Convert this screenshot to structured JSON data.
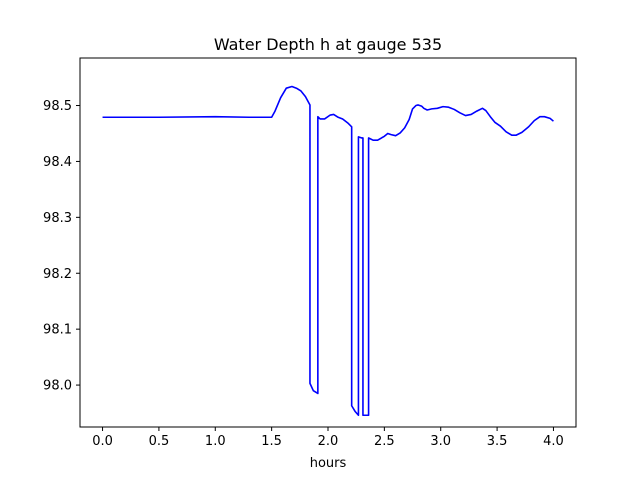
{
  "chart_data": {
    "type": "line",
    "title": "Water Depth h at gauge 535",
    "xlabel": "hours",
    "ylabel": "",
    "xlim": [
      -0.2,
      4.2
    ],
    "ylim": [
      97.925,
      98.585
    ],
    "x_ticks": [
      0.0,
      0.5,
      1.0,
      1.5,
      2.0,
      2.5,
      3.0,
      3.5,
      4.0
    ],
    "x_tick_labels": [
      "0.0",
      "0.5",
      "1.0",
      "1.5",
      "2.0",
      "2.5",
      "3.0",
      "3.5",
      "4.0"
    ],
    "y_ticks": [
      98.0,
      98.1,
      98.2,
      98.3,
      98.4,
      98.5
    ],
    "y_tick_labels": [
      "98.0",
      "98.1",
      "98.2",
      "98.3",
      "98.4",
      "98.5"
    ],
    "grid": false,
    "legend": "none",
    "color": "#0000ff",
    "series": [
      {
        "x": [
          0.0,
          0.5,
          1.0,
          1.3,
          1.5,
          1.53,
          1.58,
          1.63,
          1.68,
          1.72,
          1.76,
          1.8,
          1.84,
          1.84,
          1.87,
          1.91,
          1.91,
          1.93,
          1.97,
          2.02,
          2.05,
          2.09,
          2.13,
          2.18,
          2.21,
          2.21,
          2.24,
          2.27,
          2.27,
          2.3,
          2.31,
          2.31,
          2.36,
          2.36,
          2.37,
          2.4,
          2.44,
          2.5,
          2.53,
          2.56,
          2.6,
          2.64,
          2.68,
          2.72,
          2.75,
          2.78,
          2.8,
          2.83,
          2.85,
          2.88,
          2.92,
          2.97,
          3.02,
          3.07,
          3.12,
          3.17,
          3.22,
          3.27,
          3.32,
          3.37,
          3.4,
          3.44,
          3.48,
          3.53,
          3.58,
          3.63,
          3.67,
          3.72,
          3.78,
          3.83,
          3.88,
          3.92,
          3.97,
          4.0
        ],
        "values": [
          98.479,
          98.479,
          98.48,
          98.479,
          98.479,
          98.49,
          98.514,
          98.531,
          98.534,
          98.531,
          98.526,
          98.516,
          98.501,
          98.003,
          97.99,
          97.985,
          98.48,
          98.476,
          98.476,
          98.483,
          98.484,
          98.479,
          98.476,
          98.468,
          98.462,
          97.963,
          97.953,
          97.946,
          98.444,
          98.442,
          98.442,
          97.946,
          97.946,
          98.442,
          98.441,
          98.438,
          98.438,
          98.445,
          98.45,
          98.448,
          98.446,
          98.451,
          98.46,
          98.475,
          98.494,
          98.5,
          98.501,
          98.499,
          98.495,
          98.492,
          98.494,
          98.495,
          98.498,
          98.497,
          98.493,
          98.487,
          98.482,
          98.484,
          98.49,
          98.495,
          98.491,
          98.48,
          98.47,
          98.463,
          98.453,
          98.447,
          98.447,
          98.452,
          98.462,
          98.473,
          98.48,
          98.48,
          98.477,
          98.472
        ]
      }
    ]
  }
}
